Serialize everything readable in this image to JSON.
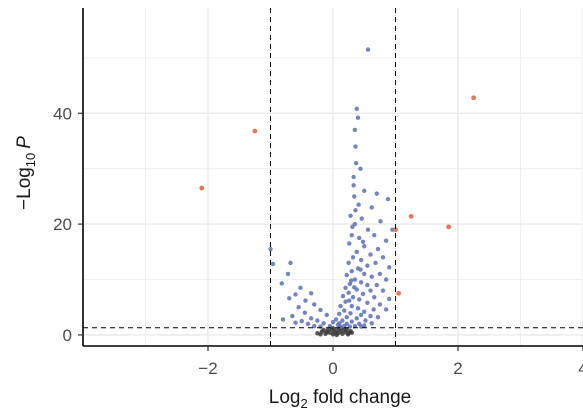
{
  "chart_data": {
    "type": "scatter",
    "title": "",
    "xlabel": {
      "main": "Log",
      "sub": "2",
      "rest": " fold change"
    },
    "ylabel": {
      "prefix": "−Log",
      "sub": "10",
      "italic": "P"
    },
    "xlim": [
      -4,
      4
    ],
    "ylim": [
      -2,
      59
    ],
    "x_ticks": [
      -2,
      0,
      2,
      4
    ],
    "x_tick_labels": [
      "−2",
      "0",
      "2",
      "4"
    ],
    "y_ticks": [
      0,
      20,
      40
    ],
    "y_tick_labels": [
      "0",
      "20",
      "40"
    ],
    "grid": true,
    "thresholds": {
      "fold_change": [
        -1,
        1
      ],
      "neg_log10_p": 1.3
    },
    "colors": {
      "not_significant": "#3a3a3a",
      "significant_p": "#5b6fb5",
      "significant_both": "#e8765b"
    },
    "series": [
      {
        "key": "ns",
        "values": [
          [
            -0.25,
            0.3
          ],
          [
            -0.18,
            0.6
          ],
          [
            -0.12,
            0.2
          ],
          [
            -0.08,
            0.9
          ],
          [
            -0.05,
            0.4
          ],
          [
            -0.02,
            1.0
          ],
          [
            0.0,
            0.1
          ],
          [
            0.02,
            0.5
          ],
          [
            0.05,
            0.8
          ],
          [
            0.08,
            0.3
          ],
          [
            0.1,
            1.1
          ],
          [
            0.12,
            0.6
          ],
          [
            0.15,
            0.2
          ],
          [
            0.18,
            0.9
          ],
          [
            0.2,
            0.5
          ],
          [
            0.22,
            1.0
          ],
          [
            0.25,
            0.3
          ],
          [
            0.28,
            0.7
          ],
          [
            0.3,
            0.4
          ],
          [
            -0.15,
            0.9
          ],
          [
            -0.1,
            0.5
          ],
          [
            0.0,
            1.2
          ],
          [
            0.06,
            0.0
          ],
          [
            -0.2,
            0.1
          ],
          [
            0.14,
            1.2
          ],
          [
            0.24,
            0.1
          ]
        ]
      },
      {
        "key": "p",
        "values": [
          [
            0.56,
            51.5
          ],
          [
            0.38,
            40.8
          ],
          [
            0.4,
            39.2
          ],
          [
            0.35,
            37.0
          ],
          [
            0.36,
            34.0
          ],
          [
            0.44,
            30.0
          ],
          [
            0.33,
            27.0
          ],
          [
            0.5,
            26.0
          ],
          [
            0.34,
            25.0
          ],
          [
            0.7,
            25.5
          ],
          [
            0.88,
            24.5
          ],
          [
            0.62,
            23.0
          ],
          [
            0.36,
            22.5
          ],
          [
            0.28,
            21.5
          ],
          [
            0.46,
            21.0
          ],
          [
            0.76,
            20.5
          ],
          [
            0.31,
            19.5
          ],
          [
            0.56,
            19.0
          ],
          [
            0.95,
            19.0
          ],
          [
            0.66,
            18.0
          ],
          [
            0.42,
            17.5
          ],
          [
            0.85,
            17.0
          ],
          [
            0.26,
            16.5
          ],
          [
            0.5,
            16.0
          ],
          [
            0.72,
            15.5
          ],
          [
            0.38,
            15.0
          ],
          [
            0.6,
            14.5
          ],
          [
            -1.0,
            15.5
          ],
          [
            -0.96,
            12.8
          ],
          [
            0.32,
            14.0
          ],
          [
            0.8,
            14.0
          ],
          [
            0.45,
            13.5
          ],
          [
            0.25,
            13.0
          ],
          [
            0.68,
            13.0
          ],
          [
            0.55,
            12.5
          ],
          [
            -0.68,
            13.0
          ],
          [
            0.4,
            12.0
          ],
          [
            0.9,
            12.2
          ],
          [
            0.3,
            11.5
          ],
          [
            0.5,
            11.0
          ],
          [
            0.75,
            11.0
          ],
          [
            0.22,
            10.8
          ],
          [
            0.62,
            10.5
          ],
          [
            -0.72,
            11.0
          ],
          [
            0.35,
            10.0
          ],
          [
            0.85,
            10.0
          ],
          [
            0.45,
            9.5
          ],
          [
            0.27,
            9.2
          ],
          [
            0.55,
            9.0
          ],
          [
            0.7,
            9.0
          ],
          [
            -0.82,
            9.3
          ],
          [
            0.2,
            8.5
          ],
          [
            0.38,
            8.2
          ],
          [
            0.6,
            8.0
          ],
          [
            0.8,
            8.0
          ],
          [
            0.25,
            7.6
          ],
          [
            0.48,
            7.4
          ],
          [
            -0.52,
            8.5
          ],
          [
            0.16,
            7.0
          ],
          [
            0.32,
            6.8
          ],
          [
            0.66,
            6.8
          ],
          [
            0.9,
            6.5
          ],
          [
            0.42,
            6.4
          ],
          [
            -0.35,
            7.5
          ],
          [
            -0.6,
            7.3
          ],
          [
            0.2,
            6.0
          ],
          [
            0.55,
            5.8
          ],
          [
            0.75,
            5.5
          ],
          [
            0.12,
            5.2
          ],
          [
            0.3,
            5.2
          ],
          [
            -0.44,
            6.2
          ],
          [
            -0.7,
            6.6
          ],
          [
            0.4,
            4.8
          ],
          [
            0.65,
            4.6
          ],
          [
            0.18,
            4.4
          ],
          [
            0.5,
            4.2
          ],
          [
            -0.3,
            5.5
          ],
          [
            -0.55,
            5.0
          ],
          [
            0.85,
            4.6
          ],
          [
            0.1,
            3.8
          ],
          [
            0.28,
            3.9
          ],
          [
            0.45,
            3.6
          ],
          [
            0.6,
            3.4
          ],
          [
            -0.2,
            4.5
          ],
          [
            -0.45,
            4.0
          ],
          [
            -0.65,
            3.4
          ],
          [
            0.22,
            3.2
          ],
          [
            0.38,
            3.0
          ],
          [
            0.72,
            3.2
          ],
          [
            -0.1,
            3.6
          ],
          [
            -0.35,
            3.0
          ],
          [
            0.05,
            2.8
          ],
          [
            0.15,
            2.6
          ],
          [
            0.3,
            2.4
          ],
          [
            0.52,
            2.6
          ],
          [
            -0.25,
            2.6
          ],
          [
            -0.5,
            2.5
          ],
          [
            -0.8,
            2.8
          ],
          [
            0.0,
            2.3
          ],
          [
            0.1,
            2.1
          ],
          [
            0.22,
            2.0
          ],
          [
            0.42,
            2.0
          ],
          [
            0.62,
            2.1
          ],
          [
            -0.15,
            2.1
          ],
          [
            -0.4,
            2.0
          ],
          [
            -0.6,
            2.2
          ],
          [
            0.08,
            1.8
          ],
          [
            0.18,
            1.6
          ],
          [
            0.35,
            1.6
          ],
          [
            0.5,
            1.7
          ],
          [
            -0.05,
            1.6
          ],
          [
            -0.3,
            1.6
          ],
          [
            0.27,
            1.5
          ],
          [
            0.12,
            1.5
          ],
          [
            0.45,
            1.5
          ],
          [
            -0.2,
            1.5
          ],
          [
            0.3,
            18.0
          ],
          [
            0.35,
            20.0
          ],
          [
            0.41,
            23.5
          ],
          [
            0.33,
            28.5
          ],
          [
            0.37,
            31.0
          ],
          [
            0.48,
            16.8
          ],
          [
            0.29,
            9.8
          ],
          [
            0.34,
            8.6
          ],
          [
            0.26,
            6.2
          ],
          [
            0.44,
            11.8
          ]
        ]
      },
      {
        "key": "sig",
        "values": [
          [
            2.25,
            42.8
          ],
          [
            -1.25,
            36.8
          ],
          [
            -2.1,
            26.5
          ],
          [
            1.25,
            21.4
          ],
          [
            1.85,
            19.5
          ],
          [
            1.0,
            19.0
          ],
          [
            1.05,
            7.5
          ]
        ]
      }
    ]
  }
}
